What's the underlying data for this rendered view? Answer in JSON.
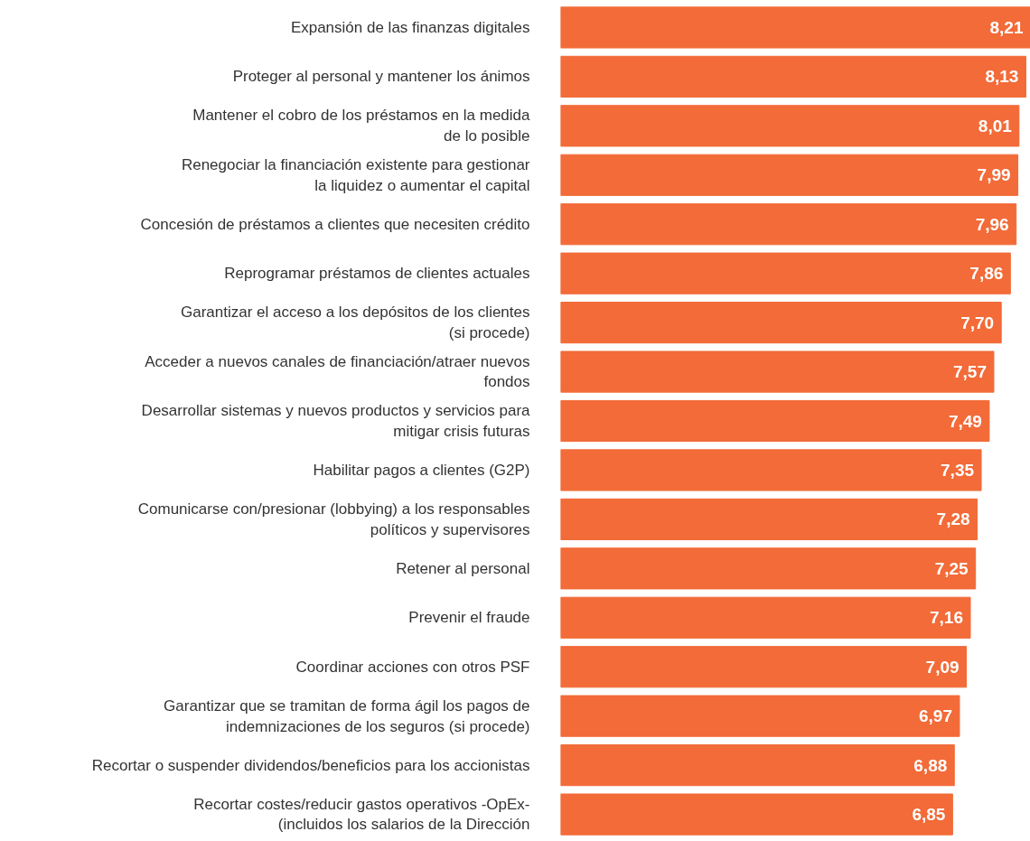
{
  "chart_data": {
    "type": "bar",
    "orientation": "horizontal",
    "tick_labels": "y",
    "grid": false,
    "categories": [
      "Expansión de las finanzas digitales",
      "Proteger al personal y mantener los ánimos",
      "Mantener el cobro de los préstamos en la medida\nde lo posible",
      "Renegociar la financiación existente para gestionar\nla liquidez o aumentar el capital",
      "Concesión de préstamos a clientes que necesiten crédito",
      "Reprogramar préstamos de clientes actuales",
      "Garantizar el acceso a los depósitos de los clientes\n(si procede)",
      "Acceder a nuevos canales de financiación/atraer nuevos\nfondos",
      "Desarrollar sistemas y nuevos productos y servicios para\nmitigar crisis futuras",
      "Habilitar pagos a clientes (G2P)",
      "Comunicarse con/presionar (lobbying) a los responsables\npolíticos y supervisores",
      "Retener al personal",
      "Prevenir el fraude",
      "Coordinar acciones con otros PSF",
      "Garantizar que se tramitan de forma ágil los pagos de\nindemnizaciones de los seguros (si procede)",
      "Recortar o suspender dividendos/beneficios para los accionistas",
      "Recortar costes/reducir gastos operativos -OpEx-\n(incluidos los salarios de la Dirección"
    ],
    "series": [
      {
        "color": "#f26b38",
        "values": [
          8.21,
          8.13,
          8.01,
          7.99,
          7.96,
          7.86,
          7.7,
          7.57,
          7.49,
          7.35,
          7.28,
          7.25,
          7.16,
          7.09,
          6.97,
          6.88,
          6.85
        ],
        "value_labels": [
          "8,21",
          "8,13",
          "8,01",
          "7,99",
          "7,96",
          "7,86",
          "7,70",
          "7,57",
          "7,49",
          "7,35",
          "7,28",
          "7,25",
          "7,16",
          "7,09",
          "6,97",
          "6,88",
          "6,85"
        ]
      }
    ]
  }
}
